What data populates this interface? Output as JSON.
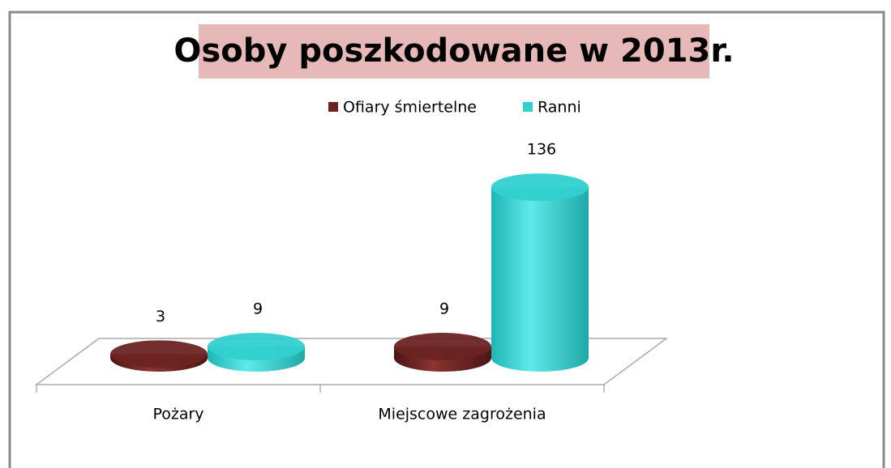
{
  "chart_data": {
    "type": "bar3d",
    "title": "Osoby poszkodowane w 2013r.",
    "categories": [
      "Pożary",
      "Miejscowe zagrożenia"
    ],
    "series": [
      {
        "name": "Ofiary śmiertelne",
        "color": "#6b2422",
        "values": [
          3,
          9
        ]
      },
      {
        "name": "Ranni",
        "color": "#33d0d0",
        "values": [
          9,
          136
        ]
      }
    ],
    "legend": "top"
  }
}
